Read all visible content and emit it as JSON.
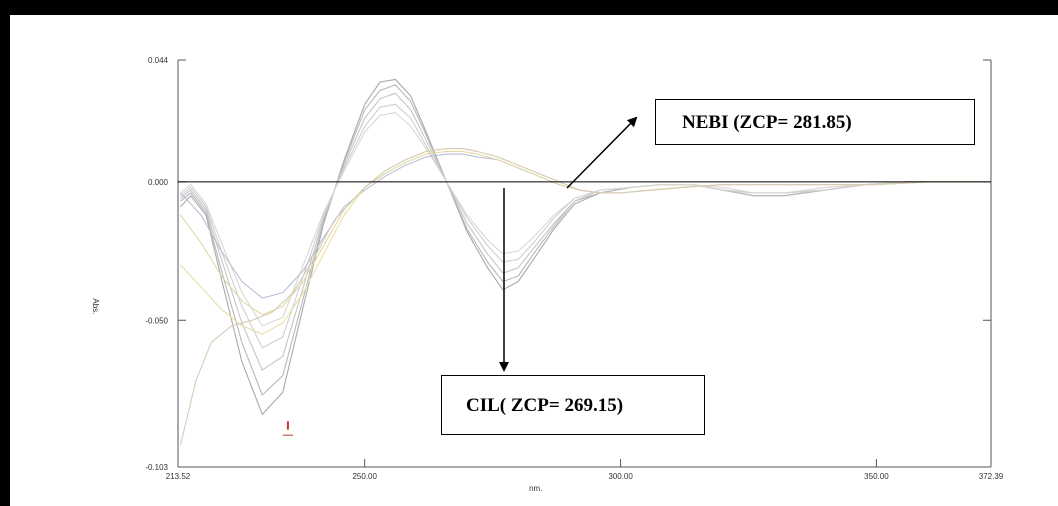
{
  "chart_data": {
    "type": "line",
    "title": "",
    "xlabel": "nm.",
    "ylabel": "Abs.",
    "xlim": [
      213.52,
      372.39
    ],
    "ylim": [
      -0.103,
      0.044
    ],
    "x_ticks": [
      "213.52",
      "250.00",
      "300.00",
      "350.00",
      "372.39"
    ],
    "y_ticks": [
      "0.044",
      "0.000",
      "-0.050",
      "-0.103"
    ],
    "grid": false,
    "colors": {
      "nebi": [
        "#a9a9a9",
        "#b8b8b8",
        "#c6c6c6",
        "#cfcfcf",
        "#d8d8d0"
      ],
      "cil": [
        "#b8bfd8",
        "#e2d9a6",
        "#eadfa0",
        "#d6ccb6"
      ],
      "axis": "#555555",
      "zero_line": "#000000"
    },
    "series": [
      {
        "group": "nebi",
        "x": [
          214,
          216,
          219,
          222,
          226,
          230,
          234,
          238,
          242,
          246,
          250,
          253,
          256,
          259,
          262,
          266,
          270,
          274,
          277,
          280,
          283,
          287,
          291,
          296,
          302,
          308,
          314,
          320,
          326,
          332,
          340,
          348,
          356,
          364,
          372
        ],
        "y": [
          -0.009,
          -0.005,
          -0.012,
          -0.035,
          -0.065,
          -0.084,
          -0.076,
          -0.045,
          -0.015,
          0.008,
          0.028,
          0.036,
          0.037,
          0.031,
          0.018,
          0.0,
          -0.018,
          -0.031,
          -0.039,
          -0.036,
          -0.028,
          -0.017,
          -0.008,
          -0.004,
          -0.002,
          -0.001,
          -0.001,
          -0.003,
          -0.005,
          -0.005,
          -0.003,
          -0.001,
          0.0,
          0.0,
          0.0
        ]
      },
      {
        "group": "nebi",
        "x": [
          214,
          216,
          219,
          222,
          226,
          230,
          234,
          238,
          242,
          246,
          250,
          253,
          256,
          259,
          262,
          266,
          270,
          274,
          277,
          280,
          283,
          287,
          291,
          296,
          302,
          308,
          314,
          320,
          326,
          332,
          340,
          348,
          356,
          364,
          372
        ],
        "y": [
          -0.007,
          -0.004,
          -0.011,
          -0.032,
          -0.058,
          -0.077,
          -0.07,
          -0.042,
          -0.014,
          0.007,
          0.026,
          0.033,
          0.035,
          0.029,
          0.017,
          0.0,
          -0.017,
          -0.029,
          -0.036,
          -0.034,
          -0.026,
          -0.016,
          -0.007,
          -0.004,
          -0.002,
          -0.001,
          -0.001,
          -0.003,
          -0.005,
          -0.005,
          -0.003,
          -0.001,
          0.0,
          0.0,
          0.0
        ]
      },
      {
        "group": "nebi",
        "x": [
          214,
          216,
          219,
          222,
          226,
          230,
          234,
          238,
          242,
          246,
          250,
          253,
          256,
          259,
          262,
          266,
          270,
          274,
          277,
          280,
          283,
          287,
          291,
          296,
          302,
          308,
          314,
          320,
          326,
          332,
          340,
          348,
          356,
          364,
          372
        ],
        "y": [
          -0.006,
          -0.003,
          -0.01,
          -0.028,
          -0.051,
          -0.068,
          -0.063,
          -0.038,
          -0.013,
          0.006,
          0.023,
          0.03,
          0.032,
          0.026,
          0.015,
          0.0,
          -0.015,
          -0.026,
          -0.033,
          -0.031,
          -0.024,
          -0.015,
          -0.007,
          -0.003,
          -0.002,
          -0.001,
          -0.001,
          -0.003,
          -0.004,
          -0.004,
          -0.003,
          -0.001,
          0.0,
          0.0,
          0.0
        ]
      },
      {
        "group": "nebi",
        "x": [
          214,
          216,
          219,
          222,
          226,
          230,
          234,
          238,
          242,
          246,
          250,
          253,
          256,
          259,
          262,
          266,
          270,
          274,
          277,
          280,
          283,
          287,
          291,
          296,
          302,
          308,
          314,
          320,
          326,
          332,
          340,
          348,
          356,
          364,
          372
        ],
        "y": [
          -0.005,
          -0.002,
          -0.009,
          -0.025,
          -0.045,
          -0.06,
          -0.056,
          -0.034,
          -0.012,
          0.005,
          0.02,
          0.027,
          0.028,
          0.023,
          0.013,
          0.0,
          -0.013,
          -0.023,
          -0.029,
          -0.028,
          -0.022,
          -0.013,
          -0.006,
          -0.003,
          -0.002,
          -0.001,
          -0.001,
          -0.003,
          -0.004,
          -0.004,
          -0.003,
          -0.001,
          0.0,
          0.0,
          0.0
        ]
      },
      {
        "group": "nebi",
        "x": [
          214,
          216,
          219,
          222,
          226,
          230,
          234,
          238,
          242,
          246,
          250,
          253,
          256,
          259,
          262,
          266,
          270,
          274,
          277,
          280,
          283,
          287,
          291,
          296,
          302,
          308,
          314,
          320,
          326,
          332,
          340,
          348,
          356,
          364,
          372
        ],
        "y": [
          -0.004,
          -0.001,
          -0.008,
          -0.022,
          -0.04,
          -0.052,
          -0.049,
          -0.03,
          -0.011,
          0.004,
          0.018,
          0.024,
          0.025,
          0.02,
          0.012,
          0.0,
          -0.012,
          -0.021,
          -0.026,
          -0.025,
          -0.02,
          -0.012,
          -0.006,
          -0.003,
          -0.002,
          -0.001,
          -0.001,
          -0.002,
          -0.004,
          -0.004,
          -0.002,
          -0.001,
          0.0,
          0.0,
          0.0
        ]
      },
      {
        "group": "cil",
        "x": [
          214,
          218,
          222,
          226,
          230,
          234,
          238,
          242,
          246,
          250,
          254,
          258,
          262,
          266,
          269.15,
          272,
          276,
          280,
          284,
          288,
          292,
          296,
          300,
          306,
          312,
          320,
          330,
          340,
          350,
          360,
          372
        ],
        "y": [
          -0.004,
          -0.012,
          -0.025,
          -0.036,
          -0.042,
          -0.04,
          -0.032,
          -0.02,
          -0.009,
          -0.003,
          0.002,
          0.006,
          0.009,
          0.01,
          0.01,
          0.009,
          0.008,
          0.005,
          0.002,
          -0.001,
          -0.003,
          -0.004,
          -0.004,
          -0.003,
          -0.002,
          -0.001,
          -0.001,
          -0.001,
          -0.001,
          0.0,
          0.0
        ]
      },
      {
        "group": "cil",
        "x": [
          214,
          218,
          222,
          226,
          230,
          234,
          238,
          242,
          246,
          250,
          254,
          258,
          262,
          266,
          269.15,
          272,
          276,
          280,
          284,
          288,
          292,
          296,
          300,
          306,
          312,
          320,
          330,
          340,
          350,
          360,
          372
        ],
        "y": [
          -0.012,
          -0.022,
          -0.034,
          -0.043,
          -0.048,
          -0.045,
          -0.036,
          -0.023,
          -0.01,
          -0.002,
          0.003,
          0.007,
          0.01,
          0.011,
          0.011,
          0.01,
          0.008,
          0.005,
          0.002,
          -0.001,
          -0.003,
          -0.004,
          -0.004,
          -0.003,
          -0.002,
          -0.001,
          -0.001,
          -0.001,
          -0.001,
          0.0,
          0.0
        ]
      },
      {
        "group": "cil",
        "x": [
          214,
          218,
          222,
          226,
          230,
          234,
          238,
          242,
          246,
          250,
          254,
          258,
          262,
          266,
          269.15,
          272,
          276,
          280,
          284,
          288,
          292,
          296,
          300,
          306,
          312,
          320,
          330,
          340,
          350,
          360,
          372
        ],
        "y": [
          -0.03,
          -0.038,
          -0.046,
          -0.052,
          -0.055,
          -0.051,
          -0.04,
          -0.026,
          -0.012,
          -0.002,
          0.004,
          0.008,
          0.011,
          0.012,
          0.012,
          0.011,
          0.009,
          0.006,
          0.003,
          0.0,
          -0.003,
          -0.004,
          -0.004,
          -0.003,
          -0.002,
          -0.001,
          -0.001,
          -0.001,
          -0.001,
          0.0,
          0.0
        ]
      },
      {
        "group": "cil",
        "x": [
          214,
          217,
          220,
          224,
          228,
          232,
          236,
          240,
          244,
          248,
          250,
          254,
          258,
          262,
          266,
          269.15,
          272,
          276,
          280,
          284,
          288,
          292,
          296,
          300,
          306,
          312,
          320,
          330,
          340,
          350,
          360,
          372
        ],
        "y": [
          -0.095,
          -0.072,
          -0.058,
          -0.052,
          -0.05,
          -0.047,
          -0.04,
          -0.028,
          -0.014,
          -0.006,
          -0.002,
          0.004,
          0.008,
          0.011,
          0.012,
          0.012,
          0.011,
          0.009,
          0.006,
          0.003,
          0.0,
          -0.003,
          -0.004,
          -0.004,
          -0.003,
          -0.002,
          -0.001,
          -0.001,
          -0.001,
          -0.001,
          0.0,
          0.0
        ]
      }
    ],
    "annotations": [
      {
        "id": "nebi",
        "text": "NEBI (ZCP= 281.85)",
        "zcp": 281.85
      },
      {
        "id": "cil",
        "text": "CIL( ZCP= 269.15)",
        "zcp": 269.15
      }
    ]
  }
}
